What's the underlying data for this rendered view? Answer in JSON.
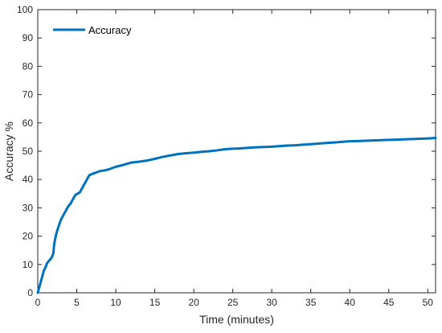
{
  "chart_data": {
    "type": "line",
    "title": "",
    "xlabel": "Time (minutes)",
    "ylabel": "Accuracy %",
    "xlim": [
      0,
      51
    ],
    "ylim": [
      0,
      100
    ],
    "xticks": [
      "0",
      "5",
      "10",
      "15",
      "20",
      "25",
      "30",
      "35",
      "40",
      "45",
      "50"
    ],
    "yticks": [
      "0",
      "10",
      "20",
      "30",
      "40",
      "50",
      "60",
      "70",
      "80",
      "90",
      "100"
    ],
    "grid": false,
    "legend_position": "top-left",
    "series": [
      {
        "name": "Accuracy",
        "color": "#0072BD",
        "x": [
          0,
          0.2,
          0.4,
          0.6,
          0.8,
          1.0,
          1.2,
          1.5,
          1.8,
          2.0,
          2.1,
          2.3,
          2.5,
          2.8,
          3.0,
          3.3,
          3.6,
          3.9,
          4.2,
          4.5,
          4.8,
          5.1,
          5.4,
          5.7,
          6.0,
          6.3,
          6.6,
          7.0,
          7.5,
          8.0,
          8.5,
          9.0,
          9.5,
          10,
          11,
          12,
          13,
          14,
          15,
          16,
          17,
          18,
          19,
          20,
          21,
          22,
          23,
          24,
          25,
          26,
          27,
          28,
          29,
          30,
          31,
          32,
          33,
          34,
          35,
          36,
          37,
          38,
          39,
          40,
          41,
          42,
          43,
          44,
          45,
          46,
          47,
          48,
          49,
          50,
          51
        ],
        "y": [
          0,
          2,
          4,
          6,
          8,
          9,
          10.5,
          11.5,
          12.5,
          14,
          17,
          20,
          22,
          24.5,
          26,
          27.5,
          29,
          30.5,
          31.5,
          33,
          34.5,
          35,
          35.5,
          37,
          38.5,
          40,
          41.5,
          42,
          42.5,
          43,
          43.2,
          43.5,
          44,
          44.5,
          45.2,
          46,
          46.3,
          46.7,
          47.3,
          48,
          48.5,
          49,
          49.3,
          49.5,
          49.8,
          50,
          50.3,
          50.7,
          50.9,
          51,
          51.2,
          51.4,
          51.5,
          51.6,
          51.8,
          52,
          52.1,
          52.3,
          52.5,
          52.7,
          52.9,
          53.1,
          53.3,
          53.5,
          53.6,
          53.7,
          53.8,
          53.9,
          54,
          54.1,
          54.2,
          54.3,
          54.4,
          54.5,
          54.7
        ]
      }
    ]
  }
}
